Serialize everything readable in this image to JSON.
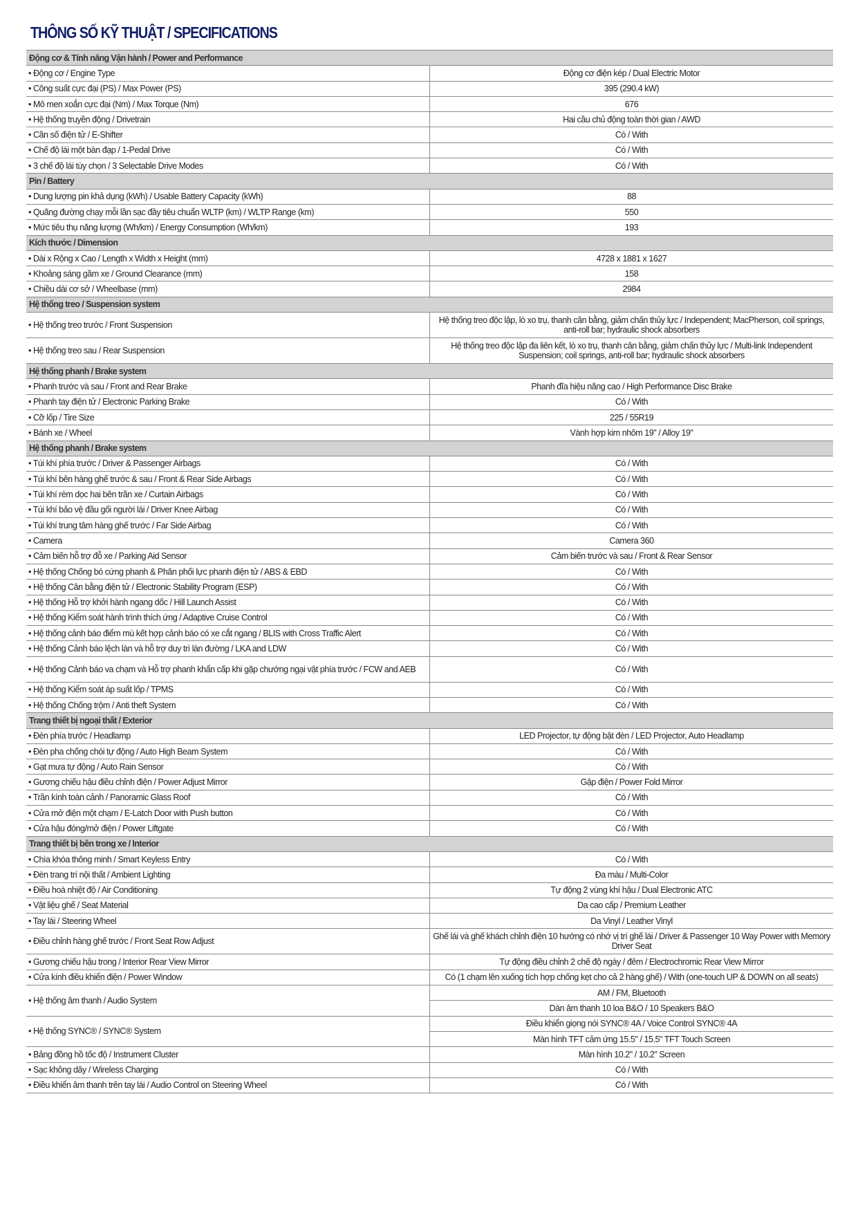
{
  "title": "THÔNG SỐ KỸ THUẬT / SPECIFICATIONS",
  "sections": [
    {
      "header": "Động cơ & Tính năng Vận hành / Power and Performance",
      "rows": [
        {
          "label": "• Động cơ / Engine Type",
          "values": [
            "Động cơ điện kép / Dual Electric Motor"
          ]
        },
        {
          "label": "• Công suất cực đại (PS) / Max Power (PS)",
          "values": [
            "395 (290.4 kW)"
          ]
        },
        {
          "label": "•  Mô men xoắn cực đại (Nm) / Max Torque (Nm)",
          "values": [
            "676"
          ]
        },
        {
          "label": "•  Hệ thống truyền động / Drivetrain",
          "values": [
            "Hai cầu chủ động toàn thời gian / AWD"
          ]
        },
        {
          "label": "•  Cần số điện tử / E-Shifter",
          "values": [
            "Có / With"
          ]
        },
        {
          "label": "•  Chế độ lái một bàn đạp / 1-Pedal Drive",
          "values": [
            "Có / With"
          ]
        },
        {
          "label": "•  3 chế độ lái tùy chọn / 3 Selectable Drive Modes",
          "values": [
            "Có / With"
          ]
        }
      ]
    },
    {
      "header": "Pin / Battery",
      "rows": [
        {
          "label": "• Dung lượng pin khả dụng (kWh) / Usable Battery Capacity (kWh)",
          "values": [
            "88"
          ]
        },
        {
          "label": "• Quãng đường chạy mỗi lần sạc đầy tiêu chuẩn WLTP (km) / WLTP Range (km)",
          "values": [
            "550"
          ]
        },
        {
          "label": "• Mức tiêu thụ năng lượng (Wh/km) / Energy Consumption (Wh/km)",
          "values": [
            "193"
          ]
        }
      ]
    },
    {
      "header": "Kích thước / Dimension",
      "rows": [
        {
          "label": "• Dài x Rộng x Cao / Length x Width x Height (mm)",
          "values": [
            "4728 x 1881 x 1627"
          ]
        },
        {
          "label": "• Khoảng sáng gầm xe / Ground Clearance (mm)",
          "values": [
            "158"
          ]
        },
        {
          "label": "• Chiều dài cơ sở / Wheelbase (mm)",
          "values": [
            "2984"
          ]
        }
      ]
    },
    {
      "header": "Hệ thống treo / Suspension system",
      "rows": [
        {
          "label": "• Hệ thống treo trước / Front Suspension",
          "values": [
            "Hệ thống treo độc lập, lò xo trụ, thanh cân bằng, giảm chấn thủy lực / Independent; MacPherson, coil springs, anti-roll bar; hydraulic shock absorbers"
          ],
          "double": true
        },
        {
          "label": "• Hệ thống treo sau / Rear Suspension",
          "values": [
            "Hệ thống treo độc lập đa liên kết, lò xo trụ, thanh cân bằng, giảm chấn thủy lực / Multi-link Independent Suspension; coil springs, anti-roll bar; hydraulic shock absorbers"
          ],
          "double": true
        }
      ]
    },
    {
      "header": "Hệ thống phanh / Brake system",
      "rows": [
        {
          "label": "• Phanh trước và sau / Front and Rear Brake",
          "values": [
            "Phanh đĩa hiệu năng cao / High Performance Disc Brake"
          ]
        },
        {
          "label": "• Phanh tay điện tử / Electronic Parking Brake",
          "values": [
            "Có / With"
          ]
        },
        {
          "label": "• Cỡ lốp / Tire Size",
          "values": [
            "225 / 55R19"
          ]
        },
        {
          "label": "• Bánh xe / Wheel",
          "values": [
            "Vành hợp kim nhôm 19\" / Alloy 19\""
          ]
        }
      ]
    },
    {
      "header": "Hệ thống phanh / Brake system",
      "rows": [
        {
          "label": "• Túi khí phía trước / Driver & Passenger Airbags",
          "values": [
            "Có / With"
          ]
        },
        {
          "label": "• Túi khí bên hàng ghế trước & sau / Front & Rear Side Airbags",
          "values": [
            "Có / With"
          ]
        },
        {
          "label": "• Túi khí rèm dọc hai bên trần xe / Curtain Airbags",
          "values": [
            "Có / With"
          ]
        },
        {
          "label": "• Túi khí bảo vệ đầu gối người lái / Driver Knee Airbag",
          "values": [
            "Có / With"
          ]
        },
        {
          "label": "• Túi khí trung tâm hàng ghế trước / Far Side Airbag",
          "values": [
            "Có / With"
          ]
        },
        {
          "label": "• Camera",
          "values": [
            "Camera 360"
          ]
        },
        {
          "label": "• Cảm biến hỗ trợ đỗ xe / Parking Aid Sensor",
          "values": [
            "Cảm biến trước và sau / Front & Rear Sensor"
          ]
        },
        {
          "label": "• Hệ thống Chống bó cứng phanh & Phân phối lực phanh điện tử / ABS & EBD",
          "values": [
            "Có / With"
          ]
        },
        {
          "label": "• Hệ thống Cân bằng điện tử / Electronic Stability Program (ESP)",
          "values": [
            "Có / With"
          ]
        },
        {
          "label": "• Hệ thống Hỗ trợ khởi hành ngang dốc / Hill Launch Assist",
          "values": [
            "Có / With"
          ]
        },
        {
          "label": "• Hệ thống Kiểm soát hành trình thích ứng / Adaptive Cruise Control",
          "values": [
            "Có / With"
          ]
        },
        {
          "label": "• Hệ thống cảnh báo điểm mù kết hợp cảnh báo có xe cắt ngang / BLIS with Cross Traffic Alert",
          "values": [
            "Có / With"
          ]
        },
        {
          "label": "• Hệ thống Cảnh báo lệch làn và hỗ trợ duy trì làn đường / LKA and LDW",
          "values": [
            "Có / With"
          ]
        },
        {
          "label": "• Hệ thống Cảnh báo va chạm và Hỗ trợ phanh khẩn cấp khi gặp chướng ngại vật phía trước / FCW and AEB",
          "values": [
            "Có / With"
          ],
          "double": true
        },
        {
          "label": "• Hệ thống Kiểm soát áp suất lốp / TPMS",
          "values": [
            "Có / With"
          ]
        },
        {
          "label": "• Hệ thống Chống trộm / Anti theft System",
          "values": [
            "Có / With"
          ]
        }
      ]
    },
    {
      "header": "Trang thiết bị ngoại thất / Exterior",
      "rows": [
        {
          "label": "• Đèn phía trước / Headlamp",
          "values": [
            "LED Projector, tự động bật đèn / LED Projector, Auto Headlamp"
          ]
        },
        {
          "label": "• Đèn pha chống chói tự động / Auto High Beam System",
          "values": [
            "Có / With"
          ]
        },
        {
          "label": "• Gạt mưa tự động / Auto Rain Sensor",
          "values": [
            "Có / With"
          ]
        },
        {
          "label": "• Gương chiếu hậu điều chỉnh điện / Power Adjust Mirror",
          "values": [
            "Gập điện / Power Fold Mirror"
          ]
        },
        {
          "label": "• Trần kính toàn cảnh / Panoramic Glass Roof",
          "values": [
            "Có / With"
          ]
        },
        {
          "label": "• Cửa mở điện một chạm / E-Latch Door with Push button",
          "values": [
            "Có / With"
          ]
        },
        {
          "label": "• Cửa hậu đóng/mở điện / Power Liftgate",
          "values": [
            "Có / With"
          ]
        }
      ]
    },
    {
      "header": "Trang thiết bị bên trong xe / Interior",
      "rows": [
        {
          "label": "• Chìa khóa thông minh / Smart Keyless Entry",
          "values": [
            "Có / With"
          ]
        },
        {
          "label": "• Đèn trang trí nội thất / Ambient Lighting",
          "values": [
            "Đa màu / Multi-Color"
          ]
        },
        {
          "label": "• Điều hoà nhiệt độ / Air Conditioning",
          "values": [
            "Tự động 2 vùng khí hậu / Dual Electronic ATC"
          ]
        },
        {
          "label": "• Vật liệu ghế / Seat Material",
          "values": [
            "Da cao cấp / Premium Leather"
          ]
        },
        {
          "label": "• Tay lái / Steering Wheel",
          "values": [
            "Da Vinyl / Leather Vinyl"
          ]
        },
        {
          "label": "• Điều chỉnh hàng ghế trước / Front Seat Row Adjust",
          "values": [
            "Ghế lái và ghế khách chỉnh điện 10 hướng có nhớ vị trí ghế lái / Driver & Passenger 10 Way Power with Memory Driver Seat"
          ],
          "double": true
        },
        {
          "label": "• Gương chiếu hậu trong / Interior Rear View Mirror",
          "values": [
            "Tự động điều chỉnh 2 chế độ ngày / đêm / Electrochromic Rear View Mirror"
          ]
        },
        {
          "label": "• Cửa kính điều khiển điện / Power Window",
          "values": [
            "Có (1 chạm lên xuống tích hợp chống kẹt cho cả 2 hàng ghế) / With (one-touch UP & DOWN on all seats)"
          ]
        },
        {
          "label": "• Hệ thống âm thanh / Audio System",
          "values": [
            "AM / FM, Bluetooth",
            "Dàn âm thanh 10 loa B&O / 10 Speakers B&O"
          ]
        },
        {
          "label": "• Hệ thống SYNC® / SYNC® System",
          "values": [
            "Điều khiển giọng nói SYNC® 4A / Voice Control SYNC® 4A",
            "Màn hình TFT cảm ứng 15.5\" / 15.5\" TFT Touch Screen"
          ]
        },
        {
          "label": "• Bảng đồng hồ tốc độ / Instrument Cluster",
          "values": [
            "Màn hình 10.2\" / 10.2\" Screen"
          ]
        },
        {
          "label": "• Sạc không dây / Wireless Charging",
          "values": [
            "Có / With"
          ]
        },
        {
          "label": "• Điều khiển âm thanh trên tay lái / Audio Control on Steering Wheel",
          "values": [
            "Có / With"
          ]
        }
      ]
    }
  ]
}
